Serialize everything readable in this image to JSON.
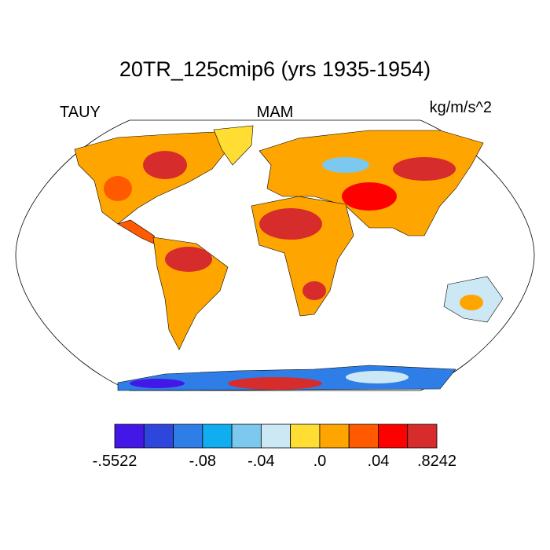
{
  "title": "20TR_125cmip6 (yrs 1935-1954)",
  "left_label": "TAUY",
  "center_label": "MAM",
  "units": "kg/m/s^2",
  "colorbar": {
    "colors": [
      "#4318e6",
      "#2f46dd",
      "#2f7ee8",
      "#10adf0",
      "#7cc8ee",
      "#cce8f5",
      "#ffdd33",
      "#ffa500",
      "#ff5a00",
      "#ff0000",
      "#d62c2c"
    ],
    "levels": [
      {
        "value": -0.5522,
        "label": "-.5522"
      },
      null,
      null,
      {
        "value": -0.08,
        "label": "-.08"
      },
      null,
      {
        "value": -0.04,
        "label": "-.04"
      },
      null,
      {
        "value": 0.0,
        "label": ".0"
      },
      null,
      {
        "value": 0.04,
        "label": ".04"
      },
      null,
      {
        "value": 0.8242,
        "label": ".8242"
      }
    ]
  }
}
